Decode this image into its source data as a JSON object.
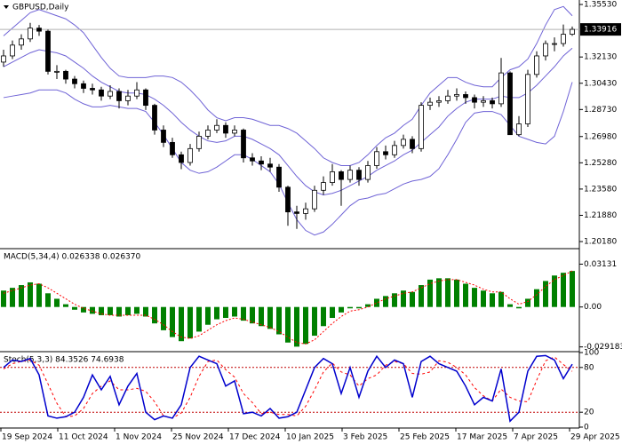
{
  "chart_data": [
    {
      "type": "candlestick",
      "title": "GBPUSD,Daily",
      "open": [
        1.318,
        1.322,
        1.329,
        1.333,
        1.34,
        1.338,
        1.312,
        1.312,
        1.307,
        1.304,
        1.301,
        1.3,
        1.296,
        1.299,
        1.293,
        1.296,
        1.3,
        1.29,
        1.274,
        1.266,
        1.258,
        1.253,
        1.262,
        1.27,
        1.274,
        1.277,
        1.272,
        1.274,
        1.256,
        1.254,
        1.252,
        1.25,
        1.237,
        1.221,
        1.22,
        1.223,
        1.235,
        1.24,
        1.247,
        1.242,
        1.248,
        1.242,
        1.251,
        1.26,
        1.258,
        1.264,
        1.268,
        1.262,
        1.29,
        1.292,
        1.293,
        1.296,
        1.297,
        1.295,
        1.292,
        1.293,
        1.291,
        1.311,
        1.271,
        1.278,
        1.31,
        1.322,
        1.33,
        1.33,
        1.336
      ],
      "high": [
        1.326,
        1.332,
        1.336,
        1.3434,
        1.342,
        1.339,
        1.316,
        1.313,
        1.309,
        1.306,
        1.304,
        1.302,
        1.303,
        1.301,
        1.3,
        1.305,
        1.301,
        1.291,
        1.277,
        1.269,
        1.26,
        1.265,
        1.273,
        1.277,
        1.281,
        1.279,
        1.277,
        1.275,
        1.259,
        1.257,
        1.256,
        1.252,
        1.238,
        1.225,
        1.227,
        1.238,
        1.244,
        1.252,
        1.248,
        1.251,
        1.25,
        1.254,
        1.263,
        1.264,
        1.267,
        1.271,
        1.27,
        1.292,
        1.295,
        1.296,
        1.3,
        1.301,
        1.299,
        1.297,
        1.296,
        1.295,
        1.3207,
        1.312,
        1.283,
        1.313,
        1.325,
        1.332,
        1.334,
        1.3423,
        1.341
      ],
      "low": [
        1.315,
        1.32,
        1.326,
        1.331,
        1.335,
        1.31,
        1.307,
        1.304,
        1.301,
        1.298,
        1.297,
        1.293,
        1.294,
        1.288,
        1.29,
        1.294,
        1.287,
        1.271,
        1.263,
        1.256,
        1.2487,
        1.251,
        1.26,
        1.268,
        1.272,
        1.269,
        1.27,
        1.253,
        1.251,
        1.248,
        1.247,
        1.234,
        1.212,
        1.21,
        1.216,
        1.221,
        1.232,
        1.238,
        1.225,
        1.24,
        1.238,
        1.24,
        1.249,
        1.255,
        1.256,
        1.262,
        1.259,
        1.26,
        1.287,
        1.289,
        1.291,
        1.293,
        1.291,
        1.288,
        1.289,
        1.288,
        1.289,
        1.2708,
        1.27,
        1.276,
        1.308,
        1.319,
        1.325,
        1.328,
        1.335
      ],
      "close": [
        1.322,
        1.329,
        1.333,
        1.34,
        1.338,
        1.312,
        1.312,
        1.307,
        1.304,
        1.301,
        1.3,
        1.296,
        1.299,
        1.293,
        1.296,
        1.3,
        1.29,
        1.274,
        1.266,
        1.258,
        1.253,
        1.262,
        1.27,
        1.274,
        1.277,
        1.272,
        1.274,
        1.256,
        1.254,
        1.252,
        1.25,
        1.237,
        1.221,
        1.22,
        1.223,
        1.235,
        1.24,
        1.247,
        1.242,
        1.248,
        1.242,
        1.251,
        1.26,
        1.258,
        1.264,
        1.268,
        1.262,
        1.29,
        1.292,
        1.293,
        1.296,
        1.297,
        1.295,
        1.292,
        1.293,
        1.291,
        1.311,
        1.271,
        1.278,
        1.31,
        1.322,
        1.33,
        1.33,
        1.336,
        1.3392
      ],
      "up_color": "#ffffff",
      "down_color": "#000000",
      "bands": {
        "color": "#6f63d6",
        "upper": [
          1.335,
          1.34,
          1.345,
          1.35,
          1.352,
          1.35,
          1.348,
          1.346,
          1.342,
          1.337,
          1.329,
          1.321,
          1.314,
          1.309,
          1.308,
          1.308,
          1.308,
          1.309,
          1.309,
          1.308,
          1.305,
          1.3,
          1.294,
          1.287,
          1.282,
          1.28,
          1.282,
          1.282,
          1.281,
          1.279,
          1.277,
          1.277,
          1.275,
          1.272,
          1.267,
          1.262,
          1.256,
          1.253,
          1.251,
          1.251,
          1.253,
          1.258,
          1.264,
          1.269,
          1.272,
          1.277,
          1.281,
          1.29,
          1.298,
          1.303,
          1.308,
          1.308,
          1.305,
          1.303,
          1.302,
          1.302,
          1.308,
          1.313,
          1.315,
          1.32,
          1.33,
          1.342,
          1.352,
          1.354,
          1.348
        ],
        "middle": [
          1.315,
          1.318,
          1.321,
          1.324,
          1.326,
          1.325,
          1.324,
          1.322,
          1.318,
          1.314,
          1.309,
          1.305,
          1.302,
          1.299,
          1.298,
          1.298,
          1.297,
          1.294,
          1.29,
          1.285,
          1.279,
          1.274,
          1.27,
          1.267,
          1.266,
          1.267,
          1.27,
          1.27,
          1.268,
          1.265,
          1.262,
          1.258,
          1.251,
          1.244,
          1.238,
          1.234,
          1.232,
          1.233,
          1.235,
          1.238,
          1.241,
          1.244,
          1.248,
          1.251,
          1.254,
          1.258,
          1.261,
          1.266,
          1.271,
          1.276,
          1.283,
          1.288,
          1.292,
          1.294,
          1.294,
          1.294,
          1.296,
          1.295,
          1.295,
          1.298,
          1.303,
          1.309,
          1.315,
          1.322,
          1.327
        ],
        "lower": [
          1.295,
          1.296,
          1.297,
          1.298,
          1.3,
          1.3,
          1.3,
          1.298,
          1.294,
          1.291,
          1.289,
          1.289,
          1.29,
          1.289,
          1.288,
          1.288,
          1.286,
          1.279,
          1.271,
          1.262,
          1.253,
          1.248,
          1.246,
          1.247,
          1.25,
          1.254,
          1.258,
          1.258,
          1.255,
          1.251,
          1.247,
          1.239,
          1.227,
          1.216,
          1.209,
          1.206,
          1.208,
          1.213,
          1.219,
          1.225,
          1.229,
          1.23,
          1.232,
          1.233,
          1.236,
          1.239,
          1.241,
          1.242,
          1.244,
          1.249,
          1.258,
          1.268,
          1.279,
          1.285,
          1.286,
          1.286,
          1.284,
          1.277,
          1.27,
          1.268,
          1.266,
          1.265,
          1.27,
          1.286,
          1.305
        ]
      },
      "bid": 1.33916,
      "ylim": [
        1.1978,
        1.3582
      ],
      "yticks": [
        {
          "value": 1.3553,
          "label": "1.35530"
        },
        {
          "value": 1.3213,
          "label": "1.32130"
        },
        {
          "value": 1.3043,
          "label": "1.30430"
        },
        {
          "value": 1.2873,
          "label": "1.28730"
        },
        {
          "value": 1.2698,
          "label": "1.26980"
        },
        {
          "value": 1.2528,
          "label": "1.25280"
        },
        {
          "value": 1.2358,
          "label": "1.23580"
        },
        {
          "value": 1.2188,
          "label": "1.21880"
        },
        {
          "value": 1.2018,
          "label": "1.20180"
        }
      ]
    },
    {
      "type": "macd",
      "title": "MACD(5,34,4) 0.026338 0.026370",
      "histogram": [
        0.012,
        0.014,
        0.016,
        0.018,
        0.017,
        0.01,
        0.006,
        0.002,
        -0.002,
        -0.004,
        -0.005,
        -0.006,
        -0.006,
        -0.007,
        -0.006,
        -0.005,
        -0.007,
        -0.012,
        -0.017,
        -0.022,
        -0.025,
        -0.023,
        -0.018,
        -0.013,
        -0.009,
        -0.008,
        -0.007,
        -0.01,
        -0.012,
        -0.014,
        -0.016,
        -0.02,
        -0.026,
        -0.029,
        -0.027,
        -0.021,
        -0.014,
        -0.008,
        -0.004,
        -0.001,
        -0.001,
        0.002,
        0.006,
        0.008,
        0.01,
        0.012,
        0.011,
        0.016,
        0.02,
        0.021,
        0.021,
        0.02,
        0.017,
        0.014,
        0.012,
        0.01,
        0.011,
        0.002,
        -0.001,
        0.006,
        0.013,
        0.019,
        0.023,
        0.025,
        0.026338
      ],
      "signal": [
        0.01,
        0.012,
        0.014,
        0.016,
        0.017,
        0.014,
        0.01,
        0.006,
        0.002,
        -0.001,
        -0.003,
        -0.005,
        -0.006,
        -0.006,
        -0.006,
        -0.006,
        -0.006,
        -0.009,
        -0.013,
        -0.018,
        -0.022,
        -0.023,
        -0.021,
        -0.017,
        -0.013,
        -0.01,
        -0.008,
        -0.009,
        -0.011,
        -0.013,
        -0.015,
        -0.018,
        -0.022,
        -0.026,
        -0.027,
        -0.024,
        -0.018,
        -0.012,
        -0.007,
        -0.003,
        -0.002,
        0.0,
        0.003,
        0.006,
        0.008,
        0.01,
        0.011,
        0.014,
        0.017,
        0.019,
        0.02,
        0.02,
        0.018,
        0.016,
        0.013,
        0.011,
        0.011,
        0.006,
        0.002,
        0.004,
        0.009,
        0.015,
        0.02,
        0.023,
        0.02637
      ],
      "bar_color": "#008000",
      "signal_color": "#ff0000",
      "ylim": [
        -0.032,
        0.042
      ],
      "yticks": [
        0.03131,
        {
          "value": 0,
          "label": "0.00"
        },
        -0.029183
      ]
    },
    {
      "type": "stochastic",
      "title": "Stoch(5,3,3) 84.3526 74.6938",
      "main": [
        80,
        90,
        88,
        92,
        70,
        15,
        12,
        14,
        20,
        40,
        70,
        50,
        68,
        30,
        55,
        72,
        20,
        10,
        15,
        12,
        30,
        80,
        95,
        90,
        85,
        55,
        62,
        18,
        20,
        15,
        25,
        12,
        14,
        20,
        50,
        80,
        92,
        85,
        45,
        80,
        40,
        75,
        95,
        80,
        90,
        85,
        40,
        88,
        95,
        85,
        80,
        75,
        55,
        30,
        40,
        35,
        78,
        8,
        20,
        75,
        95,
        96,
        90,
        65,
        84.3526
      ],
      "signal": [
        78,
        85,
        88,
        90,
        83,
        58,
        32,
        14,
        15,
        25,
        45,
        55,
        62,
        50,
        50,
        52,
        48,
        34,
        15,
        12,
        19,
        40,
        68,
        88,
        90,
        77,
        67,
        45,
        33,
        18,
        20,
        17,
        17,
        15,
        28,
        50,
        74,
        86,
        74,
        70,
        55,
        65,
        70,
        83,
        88,
        85,
        72,
        71,
        74,
        89,
        87,
        80,
        70,
        53,
        42,
        35,
        51,
        40,
        35,
        34,
        63,
        89,
        94,
        84,
        74.6938
      ],
      "main_color": "#0000cd",
      "signal_color": "#ff0000",
      "levels": [
        80,
        20
      ],
      "ylim": [
        0,
        100
      ],
      "yticks": [
        100,
        80,
        20,
        0
      ]
    }
  ],
  "time_axis": [
    "19 Sep 2024",
    "11 Oct 2024",
    "1 Nov 2024",
    "25 Nov 2024",
    "17 Dec 2024",
    "10 Jan 2025",
    "3 Feb 2025",
    "25 Feb 2025",
    "17 Mar 2025",
    "7 Apr 2025",
    "29 Apr 2025"
  ]
}
